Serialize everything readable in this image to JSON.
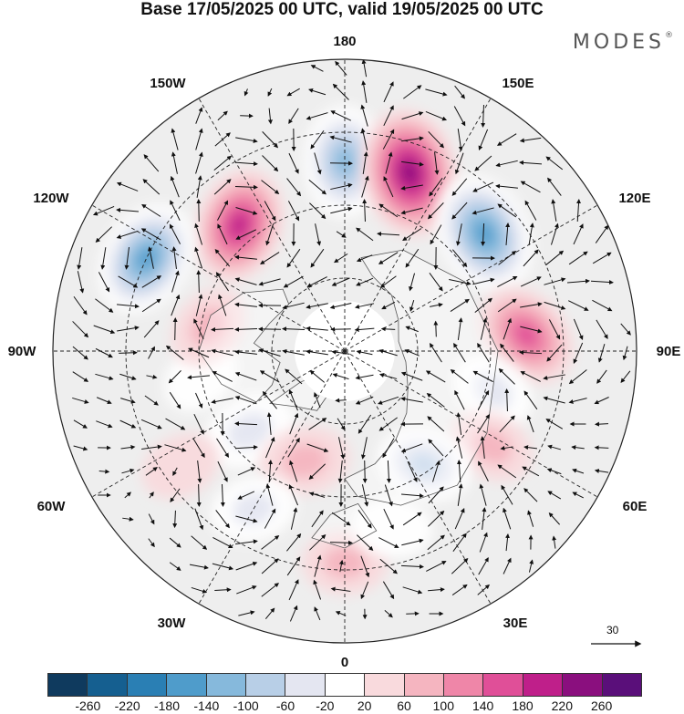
{
  "title": "Base 17/05/2025 00 UTC, valid 19/05/2025 00 UTC",
  "brand": "MODES",
  "brand_mark": "®",
  "longitude_labels": {
    "top": "180",
    "bottom": "0",
    "left": "90W",
    "right": "90E",
    "upper_left": "150W",
    "upper_right": "150E",
    "mid_upper_left": "120W",
    "mid_upper_right": "120E",
    "lower_left": "60W",
    "lower_right": "60E",
    "bottom_left": "30W",
    "bottom_right": "30E"
  },
  "reference_vector": {
    "label": "30"
  },
  "colorbar": {
    "ticks": [
      "-260",
      "-220",
      "-180",
      "-140",
      "-100",
      "-60",
      "-20",
      "20",
      "60",
      "100",
      "140",
      "180",
      "220",
      "260"
    ],
    "colors": [
      "#0f3a5e",
      "#155f90",
      "#2a7fb4",
      "#4f9ccb",
      "#86b9dc",
      "#b8cfe7",
      "#e4e6f1",
      "#ffffff",
      "#f9dadd",
      "#f5b5c0",
      "#ef86a8",
      "#e04f98",
      "#bf1f8a",
      "#8a0f7e",
      "#5a0f7a"
    ]
  },
  "anomaly_centers": [
    {
      "lon": -140,
      "lat": 45,
      "value": 180
    },
    {
      "lon": -115,
      "lat": 30,
      "value": -180
    },
    {
      "lon": 180,
      "lat": 38,
      "value": -160
    },
    {
      "lon": 160,
      "lat": 38,
      "value": 230
    },
    {
      "lon": 130,
      "lat": 40,
      "value": -200
    },
    {
      "lon": 95,
      "lat": 40,
      "value": 150
    },
    {
      "lon": 75,
      "lat": 48,
      "value": -60
    },
    {
      "lon": 57,
      "lat": 42,
      "value": 60
    },
    {
      "lon": 35,
      "lat": 52,
      "value": -100
    },
    {
      "lon": 0,
      "lat": 32,
      "value": 60
    },
    {
      "lon": -50,
      "lat": 56,
      "value": -90
    },
    {
      "lon": -20,
      "lat": 58,
      "value": 80
    },
    {
      "lon": -55,
      "lat": 35,
      "value": 40
    },
    {
      "lon": -80,
      "lat": 50,
      "value": -40
    },
    {
      "lon": -100,
      "lat": 52,
      "value": 60
    },
    {
      "lon": 15,
      "lat": 40,
      "value": -40
    },
    {
      "lon": -30,
      "lat": 40,
      "value": -60
    }
  ]
}
